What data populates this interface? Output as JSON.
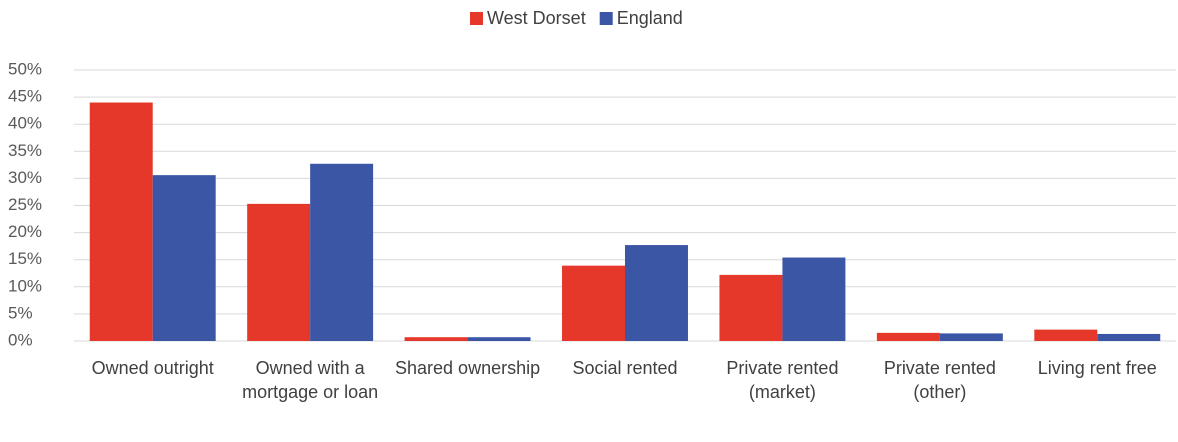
{
  "chart_data": {
    "type": "bar",
    "categories": [
      "Owned outright",
      "Owned with a mortgage or loan",
      "Shared ownership",
      "Social rented",
      "Private rented (market)",
      "Private rented (other)",
      "Living rent free"
    ],
    "series": [
      {
        "name": "West Dorset",
        "color": "#e5372a",
        "values": [
          44,
          25.3,
          0.7,
          13.9,
          12.2,
          1.5,
          2.1
        ]
      },
      {
        "name": "England",
        "color": "#3c56a6",
        "values": [
          30.6,
          32.7,
          0.7,
          17.7,
          15.4,
          1.4,
          1.3
        ]
      }
    ],
    "ylim": [
      0,
      50
    ],
    "yticks": [
      {
        "value": 0,
        "label": "0%"
      },
      {
        "value": 5,
        "label": "5%"
      },
      {
        "value": 10,
        "label": "10%"
      },
      {
        "value": 15,
        "label": "15%"
      },
      {
        "value": 20,
        "label": "20%"
      },
      {
        "value": 25,
        "label": "25%"
      },
      {
        "value": 30,
        "label": "30%"
      },
      {
        "value": 35,
        "label": "35%"
      },
      {
        "value": 40,
        "label": "40%"
      },
      {
        "value": 45,
        "label": "45%"
      },
      {
        "value": 50,
        "label": "50%"
      }
    ],
    "grid": true,
    "legend": "top"
  }
}
